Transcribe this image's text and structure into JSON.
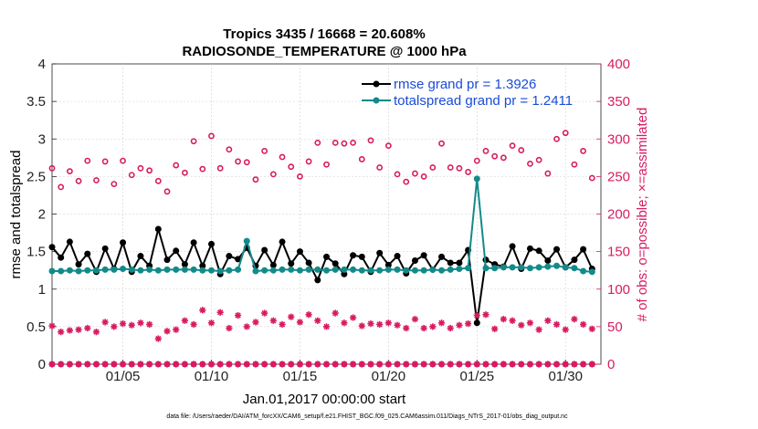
{
  "chart_data": {
    "type": "line",
    "title": "Tropics 3435 / 16668 = 20.608%",
    "subtitle": "RADIOSONDE_TEMPERATURE @ 1000 hPa",
    "xlabel": "Jan.01,2017 00:00:00 start",
    "ylabel": "rmse and totalspread",
    "ylabel_right": "# of obs: o=possible; ×=assimilated",
    "ylim": [
      0,
      4
    ],
    "ylim_right": [
      0,
      400
    ],
    "xlim": [
      1,
      32
    ],
    "yticks": [
      "0",
      "0.5",
      "1",
      "1.5",
      "2",
      "2.5",
      "3",
      "3.5",
      "4"
    ],
    "yticks_right": [
      "0",
      "50",
      "100",
      "150",
      "200",
      "250",
      "300",
      "350",
      "400"
    ],
    "xticks": [
      {
        "day": 5,
        "label": "01/05"
      },
      {
        "day": 10,
        "label": "01/10"
      },
      {
        "day": 15,
        "label": "01/15"
      },
      {
        "day": 20,
        "label": "01/20"
      },
      {
        "day": 25,
        "label": "01/25"
      },
      {
        "day": 30,
        "label": "01/30"
      }
    ],
    "legend": [
      {
        "label": "rmse grand pr = 1.3926",
        "color": "#000000"
      },
      {
        "label": "totalspread grand pr = 1.2411",
        "color": "#138a8a"
      }
    ],
    "x": [
      1.0,
      1.5,
      2.0,
      2.5,
      3.0,
      3.5,
      4.0,
      4.5,
      5.0,
      5.5,
      6.0,
      6.5,
      7.0,
      7.5,
      8.0,
      8.5,
      9.0,
      9.5,
      10.0,
      10.5,
      11.0,
      11.5,
      12.0,
      12.5,
      13.0,
      13.5,
      14.0,
      14.5,
      15.0,
      15.5,
      16.0,
      16.5,
      17.0,
      17.5,
      18.0,
      18.5,
      19.0,
      19.5,
      20.0,
      20.5,
      21.0,
      21.5,
      22.0,
      22.5,
      23.0,
      23.5,
      24.0,
      24.5,
      25.0,
      25.5,
      26.0,
      26.5,
      27.0,
      27.5,
      28.0,
      28.5,
      29.0,
      29.5,
      30.0,
      30.5,
      31.0,
      31.5
    ],
    "series": [
      {
        "name": "rmse",
        "color": "#000000",
        "values": [
          1.56,
          1.42,
          1.63,
          1.33,
          1.47,
          1.23,
          1.54,
          1.27,
          1.62,
          1.23,
          1.44,
          1.31,
          1.8,
          1.39,
          1.51,
          1.33,
          1.62,
          1.31,
          1.6,
          1.2,
          1.44,
          1.4,
          1.55,
          1.31,
          1.52,
          1.32,
          1.63,
          1.34,
          1.5,
          1.35,
          1.12,
          1.43,
          1.34,
          1.2,
          1.45,
          1.43,
          1.23,
          1.48,
          1.32,
          1.44,
          1.21,
          1.38,
          1.45,
          1.26,
          1.43,
          1.35,
          1.35,
          1.52,
          0.55,
          1.39,
          1.33,
          1.3,
          1.57,
          1.27,
          1.54,
          1.51,
          1.38,
          1.53,
          1.29,
          1.39,
          1.53,
          1.27
        ]
      },
      {
        "name": "totalspread",
        "color": "#138a8a",
        "values": [
          1.24,
          1.24,
          1.25,
          1.24,
          1.25,
          1.25,
          1.26,
          1.26,
          1.27,
          1.26,
          1.25,
          1.26,
          1.25,
          1.26,
          1.26,
          1.26,
          1.26,
          1.25,
          1.25,
          1.24,
          1.25,
          1.26,
          1.64,
          1.24,
          1.25,
          1.25,
          1.26,
          1.26,
          1.25,
          1.26,
          1.26,
          1.25,
          1.26,
          1.26,
          1.26,
          1.25,
          1.25,
          1.25,
          1.26,
          1.26,
          1.25,
          1.25,
          1.25,
          1.26,
          1.25,
          1.26,
          1.27,
          1.28,
          2.47,
          1.28,
          1.28,
          1.29,
          1.29,
          1.29,
          1.28,
          1.29,
          1.3,
          1.31,
          1.29,
          1.28,
          1.24,
          1.23
        ]
      },
      {
        "name": "obs possible",
        "color": "#d81b60",
        "axis": "right",
        "marker": "o",
        "values": [
          261,
          236,
          257,
          244,
          271,
          245,
          270,
          240,
          271,
          252,
          261,
          258,
          244,
          230,
          265,
          255,
          297,
          260,
          304,
          261,
          286,
          270,
          269,
          246,
          284,
          253,
          276,
          263,
          250,
          270,
          295,
          266,
          295,
          294,
          295,
          273,
          298,
          262,
          291,
          253,
          243,
          254,
          250,
          262,
          294,
          262,
          261,
          256,
          271,
          284,
          277,
          275,
          291,
          285,
          267,
          272,
          254,
          300,
          308,
          266,
          284,
          248
        ]
      },
      {
        "name": "obs assimilated",
        "color": "#d81b60",
        "axis": "right",
        "marker": "x",
        "values": [
          51,
          43,
          45,
          46,
          48,
          43,
          56,
          50,
          54,
          52,
          55,
          53,
          34,
          44,
          46,
          58,
          53,
          72,
          55,
          69,
          48,
          65,
          50,
          56,
          68,
          58,
          53,
          63,
          56,
          66,
          58,
          50,
          68,
          55,
          62,
          51,
          54,
          53,
          55,
          52,
          48,
          60,
          48,
          50,
          55,
          48,
          52,
          54,
          65,
          66,
          47,
          60,
          58,
          52,
          55,
          46,
          58,
          53,
          46,
          60,
          53,
          47
        ]
      },
      {
        "name": "obs bottom possible",
        "color": "#d81b60",
        "axis": "right",
        "marker": "o",
        "values": [
          0,
          0,
          0,
          0,
          0,
          0,
          0,
          0,
          0,
          0,
          0,
          0,
          0,
          0,
          0,
          0,
          0,
          0,
          0,
          0,
          0,
          0,
          0,
          0,
          0,
          0,
          0,
          0,
          0,
          0,
          0,
          0,
          0,
          0,
          0,
          0,
          0,
          0,
          0,
          0,
          0,
          0,
          0,
          0,
          0,
          0,
          0,
          0,
          0,
          0,
          0,
          0,
          0,
          0,
          0,
          0,
          0,
          0,
          0,
          0,
          0,
          0
        ]
      },
      {
        "name": "obs bottom assimilated",
        "color": "#d81b60",
        "axis": "right",
        "marker": "x",
        "values": [
          0,
          0,
          0,
          0,
          0,
          0,
          0,
          0,
          0,
          0,
          0,
          0,
          0,
          0,
          0,
          0,
          0,
          0,
          0,
          0,
          0,
          0,
          0,
          0,
          0,
          0,
          0,
          0,
          0,
          0,
          0,
          0,
          0,
          0,
          0,
          0,
          0,
          0,
          0,
          0,
          0,
          0,
          0,
          0,
          0,
          0,
          0,
          0,
          0,
          0,
          0,
          0,
          0,
          0,
          0,
          0,
          0,
          0,
          0,
          0,
          0,
          0
        ]
      }
    ],
    "grid": true,
    "legend_position": "top-right",
    "footnote": "data file: /Users/raeder/DAI/ATM_forcXX/CAM6_setup/f.e21.FHIST_BGC.f09_025.CAM6assim.011/Diags_NTrS_2017-01/obs_diag_output.nc"
  }
}
